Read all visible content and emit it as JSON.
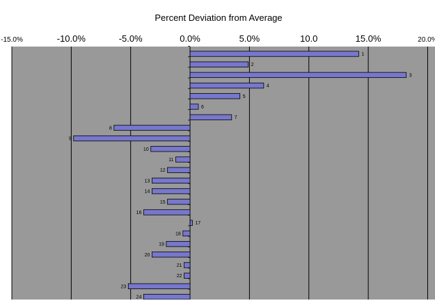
{
  "chart_data": {
    "type": "bar",
    "orientation": "horizontal",
    "title": "Percent Deviation from Average",
    "xlabel": "",
    "ylabel": "",
    "x_axis_position": "top",
    "xlim": [
      -15,
      20
    ],
    "x_ticks": [
      -15,
      -10,
      -5,
      0,
      5,
      10,
      15,
      20
    ],
    "x_tick_labels": [
      "-15.0%",
      "-10.0%",
      "-5.0%",
      "0.0%",
      "5.0%",
      "10.0",
      "15.0%",
      "20.0%"
    ],
    "grid": true,
    "legend": "none",
    "categories": [
      "1",
      "2",
      "3",
      "4",
      "5",
      "6",
      "7",
      "8",
      "9",
      "10",
      "11",
      "12",
      "13",
      "14",
      "15",
      "16",
      "17",
      "18",
      "19",
      "20",
      "21",
      "22",
      "23",
      "24"
    ],
    "values": [
      14.2,
      4.9,
      18.2,
      6.2,
      4.2,
      0.7,
      3.5,
      -6.4,
      -9.8,
      -3.3,
      -1.2,
      -1.9,
      -3.2,
      -3.2,
      -1.9,
      -3.9,
      0.2,
      -0.6,
      -2.0,
      -3.2,
      -0.5,
      -0.5,
      -5.2,
      -3.9
    ],
    "colors": {
      "plot_background": "#999999",
      "bar_fill": "#7777cc",
      "bar_stroke": "#000000",
      "gridline": "#000000"
    }
  }
}
